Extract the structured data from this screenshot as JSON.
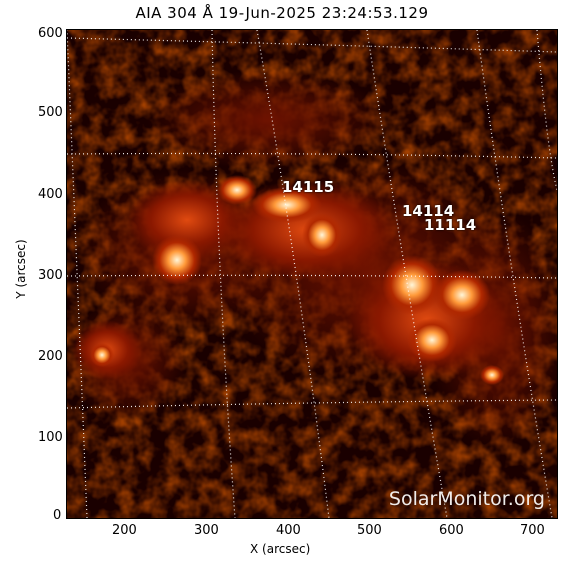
{
  "title": "AIA 304 Å 19-Jun-2025 23:24:53.129",
  "axes": {
    "x_title": "X (arcsec)",
    "y_title": "Y (arcsec)",
    "x_ticks": [
      "200",
      "300",
      "400",
      "500",
      "600",
      "700"
    ],
    "y_ticks": [
      "600",
      "500",
      "400",
      "300",
      "200",
      "100",
      "0"
    ]
  },
  "regions": [
    {
      "label": "14115"
    },
    {
      "label": "14114"
    },
    {
      "label": "11114"
    }
  ],
  "watermark": "SolarMonitor.org",
  "colors": {
    "background": "#1a0000",
    "emission_low": "#5a0a00",
    "emission_mid": "#c03a00",
    "emission_high": "#ffd080",
    "grid": "#ffffff"
  }
}
